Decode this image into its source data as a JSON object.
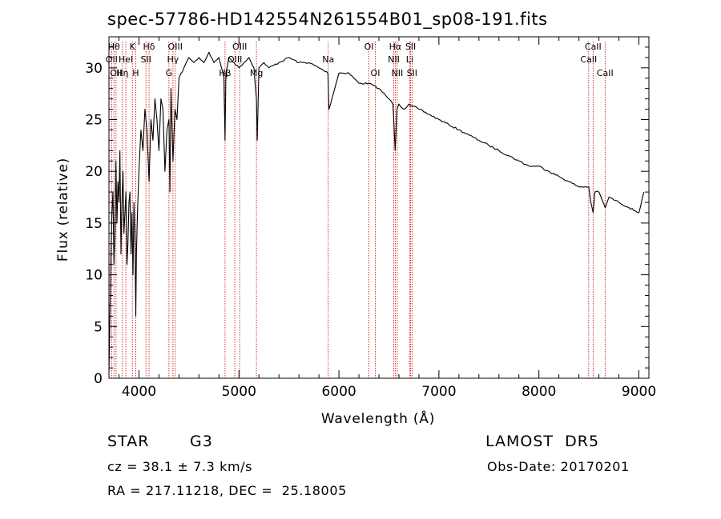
{
  "chart_data": {
    "type": "line",
    "title": "spec-57786-HD142554N261554B01_sp08-191.fits",
    "xlabel": "Wavelength (Å)",
    "ylabel": "Flux (relative)",
    "xlim": [
      3700,
      9100
    ],
    "ylim": [
      0,
      33
    ],
    "xticks": [
      4000,
      5000,
      6000,
      7000,
      8000,
      9000
    ],
    "yticks": [
      0,
      5,
      10,
      15,
      20,
      25,
      30
    ],
    "grid": false,
    "colors": {
      "line": "#000000",
      "markers": "#cc0000"
    },
    "series": [
      {
        "x": [
          3700,
          3710,
          3720,
          3730,
          3740,
          3750,
          3760,
          3770,
          3780,
          3790,
          3800,
          3810,
          3820,
          3830,
          3840,
          3850,
          3860,
          3870,
          3880,
          3890,
          3900,
          3910,
          3920,
          3930,
          3940,
          3950,
          3960,
          3968,
          3975,
          3985,
          4000,
          4020,
          4040,
          4060,
          4080,
          4101,
          4120,
          4140,
          4160,
          4180,
          4200,
          4220,
          4240,
          4260,
          4280,
          4300,
          4310,
          4320,
          4340,
          4360,
          4380,
          4400,
          4450,
          4500,
          4550,
          4600,
          4650,
          4700,
          4750,
          4800,
          4850,
          4861,
          4870,
          4900,
          4950,
          5000,
          5050,
          5100,
          5150,
          5175,
          5183,
          5200,
          5250,
          5300,
          5400,
          5500,
          5600,
          5700,
          5800,
          5890,
          5900,
          6000,
          6100,
          6200,
          6300,
          6400,
          6500,
          6540,
          6563,
          6580,
          6600,
          6650,
          6700,
          6800,
          6900,
          7000,
          7100,
          7200,
          7300,
          7400,
          7500,
          7600,
          7700,
          7800,
          7900,
          8000,
          8100,
          8200,
          8300,
          8400,
          8498,
          8520,
          8542,
          8560,
          8600,
          8662,
          8700,
          8800,
          8900,
          9000,
          9050
        ],
        "y": [
          0.5,
          6,
          12,
          16,
          18,
          11,
          14,
          21,
          15,
          19,
          17,
          22,
          12,
          17,
          20,
          14,
          16,
          18,
          11,
          13,
          17,
          18,
          12,
          16,
          10,
          17,
          13,
          6,
          12,
          16,
          20,
          24,
          22,
          26,
          24,
          19,
          25,
          23,
          27,
          25,
          22,
          27,
          26,
          20,
          24,
          25,
          18,
          28,
          21,
          26,
          25,
          29,
          30,
          31,
          30.5,
          31,
          30.5,
          31.5,
          30.5,
          31,
          29,
          23,
          29.5,
          31,
          30.5,
          30,
          30.5,
          31,
          30,
          27,
          23,
          30,
          30.5,
          30,
          30.5,
          31,
          30.5,
          30.5,
          30,
          29.5,
          26,
          29.5,
          29.5,
          28.5,
          28.5,
          28,
          27,
          26.5,
          22,
          26,
          26.5,
          26,
          26.5,
          26,
          25.5,
          25,
          24.5,
          24,
          23.5,
          23,
          22.5,
          22,
          21.5,
          21,
          20.5,
          20.5,
          20,
          19.5,
          19,
          18.5,
          18.5,
          17,
          16,
          18,
          18,
          16.5,
          17.5,
          17,
          16.5,
          16,
          18
        ]
      }
    ],
    "lines": [
      {
        "x": 3727,
        "label": "OII",
        "row": 2
      },
      {
        "x": 3750,
        "label": "Hθ",
        "row": 1
      },
      {
        "x": 3771,
        "label": "OII",
        "row": 3
      },
      {
        "x": 3835,
        "label": "Hη",
        "row": 3
      },
      {
        "x": 3869,
        "label": "HeI",
        "row": 2
      },
      {
        "x": 3934,
        "label": "K",
        "row": 1
      },
      {
        "x": 3968,
        "label": "H",
        "row": 3
      },
      {
        "x": 4070,
        "label": "SII",
        "row": 2
      },
      {
        "x": 4101,
        "label": "Hδ",
        "row": 1
      },
      {
        "x": 4300,
        "label": "G",
        "row": 3
      },
      {
        "x": 4340,
        "label": "Hγ",
        "row": 2
      },
      {
        "x": 4363,
        "label": "OIII",
        "row": 1
      },
      {
        "x": 4861,
        "label": "Hβ",
        "row": 3
      },
      {
        "x": 4959,
        "label": "OIII",
        "row": 2
      },
      {
        "x": 5007,
        "label": "OIII",
        "row": 1
      },
      {
        "x": 5175,
        "label": "Mg",
        "row": 3
      },
      {
        "x": 5893,
        "label": "Na",
        "row": 2
      },
      {
        "x": 6300,
        "label": "OI",
        "row": 1
      },
      {
        "x": 6364,
        "label": "OI",
        "row": 3
      },
      {
        "x": 6548,
        "label": "NII",
        "row": 2
      },
      {
        "x": 6563,
        "label": "Hα",
        "row": 1
      },
      {
        "x": 6583,
        "label": "NII",
        "row": 3
      },
      {
        "x": 6707,
        "label": "Li",
        "row": 2
      },
      {
        "x": 6717,
        "label": "SII",
        "row": 1
      },
      {
        "x": 6731,
        "label": "SII",
        "row": 3
      },
      {
        "x": 8498,
        "label": "CaII",
        "row": 2
      },
      {
        "x": 8542,
        "label": "CaII",
        "row": 1
      },
      {
        "x": 8662,
        "label": "CaII",
        "row": 3
      }
    ]
  },
  "info": {
    "class": "STAR",
    "subclass": "G3",
    "survey": "LAMOST  DR5",
    "cz": "cz = 38.1 ± 7.3 km/s",
    "obs_date": "Obs-Date: 20170201",
    "coords": "RA = 217.11218, DEC =  25.18005"
  }
}
